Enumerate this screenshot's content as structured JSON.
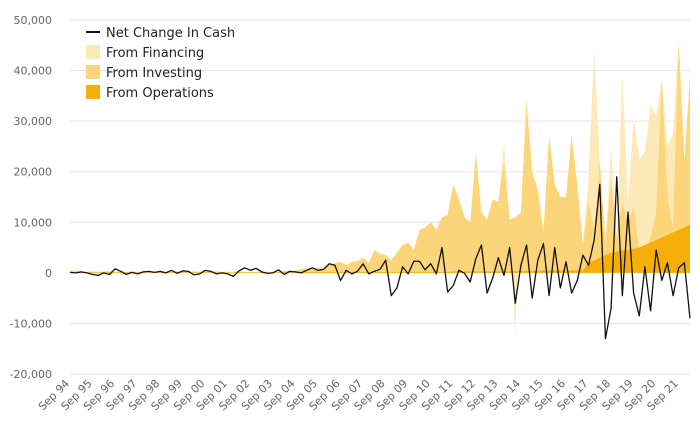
{
  "chart_data": {
    "type": "area",
    "ylim": [
      -20000,
      50000
    ],
    "y_ticks": [
      -20000,
      -10000,
      0,
      10000,
      20000,
      30000,
      40000,
      50000
    ],
    "y_tick_labels": [
      "-20,000",
      "-10,000",
      "0",
      "10,000",
      "20,000",
      "30,000",
      "40,000",
      "50,000"
    ],
    "grid": true,
    "legend_position": "top-left",
    "x_start_label": "Sep 94",
    "x_tick_labels": [
      "Sep 94",
      "Sep 95",
      "Sep 96",
      "Sep 97",
      "Sep 98",
      "Sep 99",
      "Sep 00",
      "Sep 01",
      "Sep 02",
      "Sep 03",
      "Sep 04",
      "Sep 05",
      "Sep 06",
      "Sep 07",
      "Sep 08",
      "Sep 09",
      "Sep 10",
      "Sep 11",
      "Sep 12",
      "Sep 13",
      "Sep 14",
      "Sep 15",
      "Sep 16",
      "Sep 17",
      "Sep 18",
      "Sep 19",
      "Sep 20",
      "Sep 21"
    ],
    "quarters_per_tick": 4,
    "series": [
      {
        "name": "From Financing",
        "role": "area",
        "color": "#fde9b8",
        "values": [
          400,
          500,
          300,
          200,
          300,
          200,
          300,
          300,
          200,
          300,
          200,
          300,
          200,
          300,
          300,
          200,
          300,
          200,
          200,
          300,
          200,
          200,
          300,
          200,
          200,
          200,
          300,
          200,
          200,
          200,
          300,
          200,
          200,
          200,
          300,
          200,
          200,
          200,
          400,
          300,
          500,
          700,
          900,
          900,
          1000,
          800,
          1500,
          1900,
          2200,
          1500,
          2200,
          2300,
          3000,
          2000,
          4500,
          3800,
          3500,
          2500,
          4000,
          5500,
          6000,
          4500,
          8500,
          9000,
          10000,
          8500,
          11000,
          11500,
          17500,
          14500,
          11000,
          10000,
          23500,
          12000,
          10500,
          14500,
          14000,
          25500,
          10500,
          -12000,
          12000,
          34000,
          20000,
          16500,
          8000,
          27000,
          17500,
          15000,
          15000,
          27000,
          17500,
          5500,
          19000,
          44000,
          22000,
          6000,
          25000,
          7000,
          39000,
          14000,
          30500,
          22500,
          24000,
          33000,
          31000,
          38500,
          25000,
          27500,
          46000,
          22000,
          39000
        ]
      },
      {
        "name": "From Investing",
        "role": "area",
        "color": "#fcd57a",
        "values": [
          400,
          500,
          300,
          200,
          300,
          200,
          300,
          300,
          200,
          300,
          200,
          300,
          200,
          300,
          300,
          200,
          300,
          200,
          200,
          300,
          200,
          200,
          300,
          200,
          200,
          200,
          300,
          200,
          200,
          200,
          300,
          200,
          200,
          200,
          300,
          200,
          200,
          200,
          400,
          300,
          500,
          700,
          900,
          900,
          1000,
          800,
          1500,
          1900,
          2200,
          1500,
          2200,
          2300,
          3000,
          2000,
          4500,
          3800,
          3500,
          2500,
          4000,
          5500,
          6000,
          4500,
          8500,
          9000,
          10000,
          8500,
          11000,
          11500,
          17500,
          14500,
          11000,
          10000,
          23500,
          12000,
          10500,
          14500,
          14000,
          22000,
          10500,
          11000,
          12000,
          34000,
          20000,
          16500,
          8000,
          27000,
          17500,
          15000,
          15000,
          27000,
          17500,
          5500,
          14000,
          8500,
          22000,
          6000,
          18000,
          7000,
          14000,
          10000,
          13000,
          4500,
          4000,
          7000,
          12000,
          38000,
          15000,
          9000,
          46000,
          22000,
          39000
        ]
      },
      {
        "name": "From Operations",
        "role": "area",
        "color": "#f5ae0a",
        "values": [
          100,
          100,
          100,
          100,
          100,
          100,
          100,
          100,
          100,
          100,
          100,
          100,
          100,
          100,
          100,
          100,
          100,
          100,
          100,
          100,
          100,
          100,
          100,
          100,
          100,
          100,
          100,
          100,
          100,
          100,
          100,
          100,
          100,
          100,
          100,
          100,
          100,
          100,
          100,
          100,
          150,
          150,
          150,
          150,
          150,
          150,
          150,
          150,
          150,
          150,
          150,
          150,
          150,
          150,
          150,
          150,
          150,
          150,
          150,
          150,
          200,
          200,
          200,
          200,
          200,
          200,
          200,
          200,
          300,
          300,
          300,
          300,
          300,
          300,
          300,
          300,
          300,
          300,
          300,
          300,
          400,
          400,
          400,
          400,
          500,
          500,
          500,
          500,
          500,
          500,
          500,
          500,
          2000,
          2500,
          3000,
          3500,
          4000,
          4200,
          4500,
          4500,
          4800,
          5000,
          5500,
          6000,
          6500,
          7000,
          7500,
          8000,
          8500,
          9000,
          9500
        ]
      },
      {
        "name": "Net Change In Cash",
        "role": "line",
        "color": "#111111",
        "values": [
          100,
          0,
          200,
          0,
          -300,
          -500,
          0,
          -300,
          800,
          300,
          -300,
          100,
          -200,
          200,
          300,
          100,
          300,
          0,
          500,
          -100,
          400,
          300,
          -400,
          -200,
          500,
          300,
          -200,
          0,
          -200,
          -700,
          400,
          1000,
          500,
          900,
          200,
          -100,
          0,
          600,
          -300,
          300,
          200,
          0,
          500,
          1000,
          500,
          700,
          1800,
          1500,
          -1500,
          500,
          -200,
          300,
          1800,
          -200,
          300,
          700,
          2500,
          -4500,
          -3000,
          1200,
          -200,
          2300,
          2300,
          600,
          1800,
          -200,
          5000,
          -3800,
          -2500,
          500,
          -100,
          -1800,
          2800,
          5500,
          -4000,
          -1000,
          3000,
          -500,
          5000,
          -6000,
          1500,
          5500,
          -5000,
          2500,
          5800,
          -4500,
          5000,
          -3000,
          2200,
          -4000,
          -1500,
          3500,
          1500,
          6500,
          17500,
          -13000,
          -7000,
          19000,
          -4500,
          12000,
          -4000,
          -8500,
          1200,
          -7500,
          4500,
          -1500,
          2000,
          -4500,
          1000,
          2000,
          -9000
        ]
      }
    ]
  }
}
